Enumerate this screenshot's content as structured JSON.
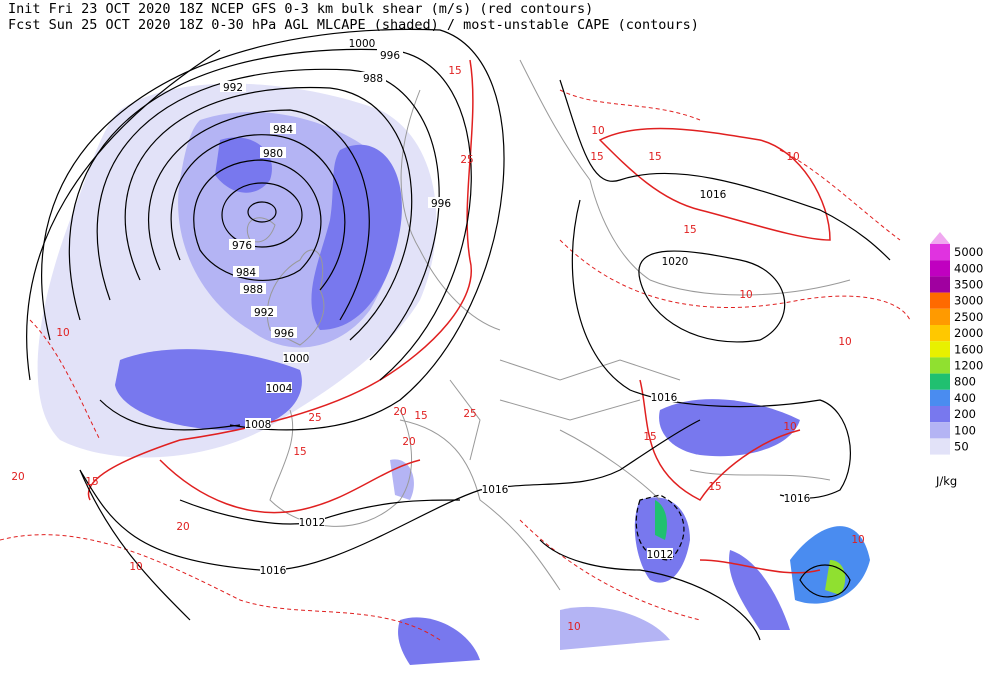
{
  "header": {
    "line1": "Init  Fri 23 OCT 2020 18Z  NCEP GFS 0-3 km bulk shear (m/s) (red contours)",
    "line2": "Fcst Sun 25 OCT 2020 18Z  0-30 hPa AGL MLCAPE (shaded) / most-unstable CAPE (contours)"
  },
  "isobar_labels": [
    1000,
    996,
    988,
    992,
    984,
    980,
    996,
    976,
    984,
    988,
    992,
    996,
    1000,
    1004,
    1008,
    1016,
    1020,
    1016,
    1016,
    1012,
    1016,
    1012,
    1016
  ],
  "shear_labels": [
    15,
    10,
    15,
    25,
    15,
    10,
    15,
    10,
    20,
    25,
    15,
    20,
    15,
    25,
    20,
    10,
    10,
    15,
    20,
    10,
    15,
    15,
    10,
    10,
    10
  ],
  "legend": {
    "levels": [
      {
        "value": 5000,
        "color": "#e033e0"
      },
      {
        "value": 4000,
        "color": "#c000c0"
      },
      {
        "value": 3500,
        "color": "#a000a0"
      },
      {
        "value": 3000,
        "color": "#ff6a00"
      },
      {
        "value": 2500,
        "color": "#ff9a00"
      },
      {
        "value": 2000,
        "color": "#ffc800"
      },
      {
        "value": 1600,
        "color": "#e8f000"
      },
      {
        "value": 1200,
        "color": "#90e030"
      },
      {
        "value": 800,
        "color": "#20c070"
      },
      {
        "value": 400,
        "color": "#4a8cf0"
      },
      {
        "value": 200,
        "color": "#7878ee"
      },
      {
        "value": 100,
        "color": "#b4b4f4"
      },
      {
        "value": 50,
        "color": "#e2e2f8"
      }
    ],
    "cap_color": "#f0a8f0",
    "unit": "J/kg"
  }
}
